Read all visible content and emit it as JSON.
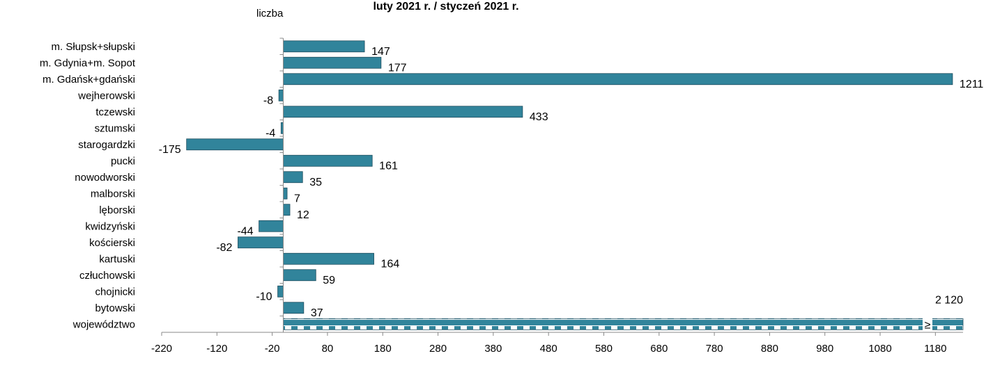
{
  "chart_data": {
    "type": "bar",
    "orientation": "horizontal",
    "title": "luty 2021 r. / styczeń 2021 r.",
    "unit_label": "liczba",
    "categories": [
      "m. Słupsk+słupski",
      "m. Gdynia+m. Sopot",
      "m. Gdańsk+gdański",
      "wejherowski",
      "tczewski",
      "sztumski",
      "starogardzki",
      "pucki",
      "nowodworski",
      "malborski",
      "lęborski",
      "kwidzyński",
      "kościerski",
      "kartuski",
      "człuchowski",
      "chojnicki",
      "bytowski",
      "województwo"
    ],
    "values": [
      147,
      177,
      1211,
      -8,
      433,
      -4,
      -175,
      161,
      35,
      7,
      12,
      -44,
      -82,
      164,
      59,
      -10,
      37,
      2120
    ],
    "data_labels": [
      "147",
      "177",
      "1211",
      "-8",
      "433",
      "-4",
      "-175",
      "161",
      "35",
      "7",
      "12",
      "-44",
      "-82",
      "164",
      "59",
      "-10",
      "37",
      "2 120"
    ],
    "axis_break_mark": "≥",
    "xlim": [
      -220,
      1230
    ],
    "xticks": [
      "-220",
      "-120",
      "-20",
      "80",
      "180",
      "280",
      "380",
      "480",
      "580",
      "680",
      "780",
      "880",
      "980",
      "1080",
      "1180"
    ],
    "bar_color": "#31849b",
    "axis_break_category": "województwo",
    "grid": false
  }
}
